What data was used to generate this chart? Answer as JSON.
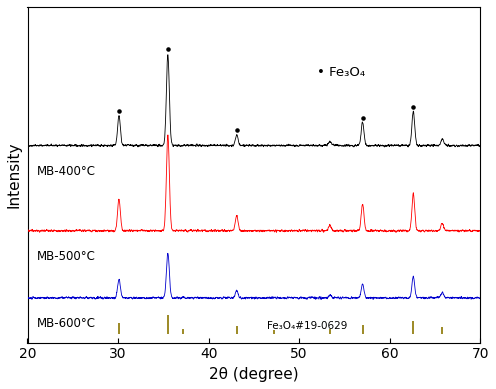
{
  "title": "",
  "xlabel": "2θ (degree)",
  "ylabel": "Intensity",
  "xlim": [
    20,
    70
  ],
  "colors": {
    "black": "#000000",
    "red": "#ff0000",
    "blue": "#0000cc",
    "olive": "#8B7500"
  },
  "labels": {
    "mb400": "MB-400°C",
    "mb500": "MB-500°C",
    "mb600": "MB-600°C",
    "ref": "Fe₃O₄#19-0629"
  },
  "legend_marker_text": "• Fe₃O₄",
  "offsets": {
    "black": 1.55,
    "red": 0.75,
    "blue": 0.12
  },
  "fe3o4_ref_lines_pos": [
    30.1,
    35.5,
    37.2,
    43.1,
    47.2,
    53.4,
    57.0,
    62.6,
    65.8
  ],
  "fe3o4_ref_lines_heights": [
    0.1,
    0.18,
    0.05,
    0.08,
    0.04,
    0.05,
    0.09,
    0.12,
    0.07
  ],
  "dot_peaks_black": [
    30.1,
    35.5,
    43.1,
    57.0,
    62.6
  ]
}
